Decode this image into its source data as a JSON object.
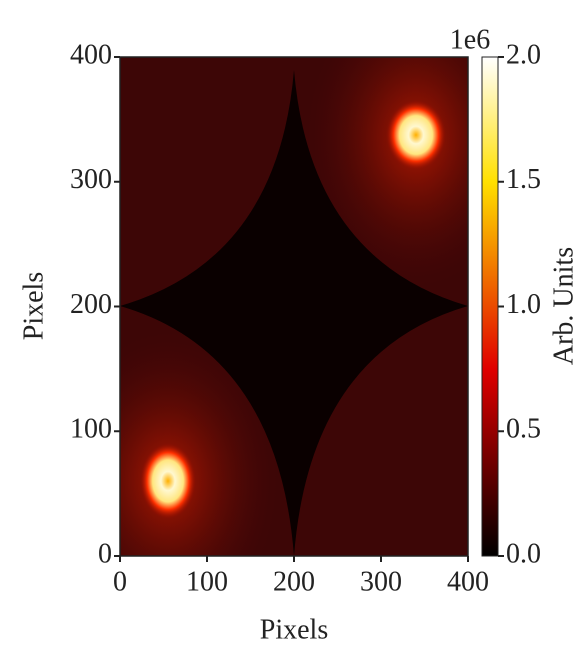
{
  "chart_data": {
    "type": "heatmap",
    "cmap": "hot",
    "xlabel": "Pixels",
    "ylabel": "Pixels",
    "xlim": [
      0,
      400
    ],
    "ylim": [
      0,
      400
    ],
    "xticks": [
      0,
      100,
      200,
      300,
      400
    ],
    "yticks": [
      0,
      100,
      200,
      300,
      400
    ],
    "colorbar": {
      "label": "Arb. Units",
      "offset_label": "1e6",
      "clim": [
        0,
        2.0
      ],
      "ticks": [
        {
          "value": 0,
          "label": "0.0"
        },
        {
          "value": 0.5,
          "label": "0.5"
        },
        {
          "value": 1.0,
          "label": "1.0"
        },
        {
          "value": 1.5,
          "label": "1.5"
        },
        {
          "value": 2.0,
          "label": "2.0"
        }
      ]
    }
  }
}
